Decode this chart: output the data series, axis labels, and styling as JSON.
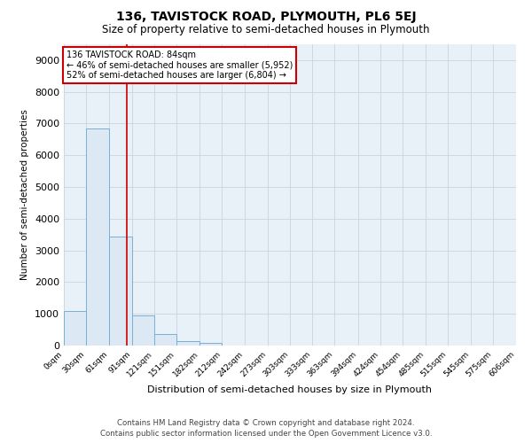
{
  "title": "136, TAVISTOCK ROAD, PLYMOUTH, PL6 5EJ",
  "subtitle": "Size of property relative to semi-detached houses in Plymouth",
  "xlabel": "Distribution of semi-detached houses by size in Plymouth",
  "ylabel": "Number of semi-detached properties",
  "footer_line1": "Contains HM Land Registry data © Crown copyright and database right 2024.",
  "footer_line2": "Contains public sector information licensed under the Open Government Licence v3.0.",
  "property_size": 84,
  "annotation_title": "136 TAVISTOCK ROAD: 84sqm",
  "annotation_line1": "← 46% of semi-detached houses are smaller (5,952)",
  "annotation_line2": "52% of semi-detached houses are larger (6,804) →",
  "bar_color": "#dce9f5",
  "bar_edge_color": "#7bafd4",
  "red_line_color": "#cc0000",
  "annotation_box_color": "#cc0000",
  "bin_edges": [
    0,
    30,
    61,
    91,
    121,
    151,
    182,
    212,
    242,
    273,
    303,
    333,
    363,
    394,
    424,
    454,
    485,
    515,
    545,
    575,
    606
  ],
  "bar_heights": [
    1100,
    6850,
    3450,
    950,
    350,
    130,
    80,
    0,
    0,
    0,
    0,
    0,
    0,
    0,
    0,
    0,
    0,
    0,
    0,
    0
  ],
  "ylim": [
    0,
    9500
  ],
  "yticks": [
    0,
    1000,
    2000,
    3000,
    4000,
    5000,
    6000,
    7000,
    8000,
    9000
  ],
  "grid_color": "#c8d4e0",
  "bg_color": "#e8f0f8"
}
